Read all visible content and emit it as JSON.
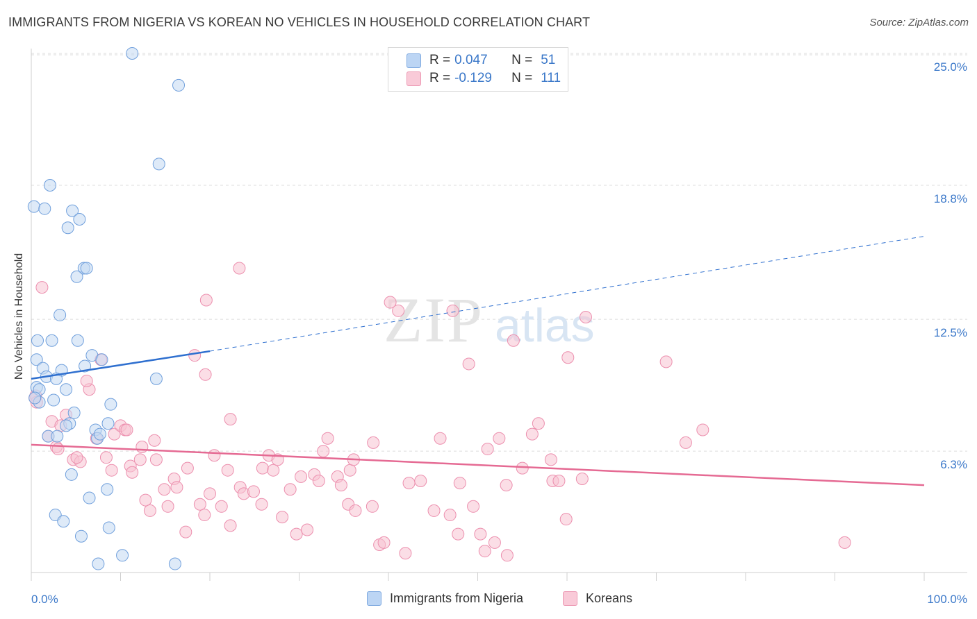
{
  "header": {
    "title": "IMMIGRANTS FROM NIGERIA VS KOREAN NO VEHICLES IN HOUSEHOLD CORRELATION CHART",
    "source": "Source: ZipAtlas.com"
  },
  "watermark": {
    "part1": "ZIP",
    "part2": "atlas"
  },
  "legend": {
    "rows": [
      {
        "r_label": "R =",
        "r_value": "0.047",
        "n_label": "N =",
        "n_value": "51",
        "color": "#a9c8f0"
      },
      {
        "r_label": "R =",
        "r_value": "-0.129",
        "n_label": "N =",
        "n_value": "111",
        "color": "#f7b8cb"
      }
    ]
  },
  "bottom_legend": {
    "items": [
      {
        "label": "Immigrants from Nigeria",
        "color": "#a9c8f0"
      },
      {
        "label": "Koreans",
        "color": "#f7b8cb"
      }
    ]
  },
  "chart_data": {
    "type": "scatter",
    "title": "IMMIGRANTS FROM NIGERIA VS KOREAN NO VEHICLES IN HOUSEHOLD CORRELATION CHART",
    "xlabel": "",
    "ylabel": "No Vehicles in Household",
    "xlim": [
      0,
      100
    ],
    "ylim": [
      0,
      26
    ],
    "x_tick_labels": [
      "0.0%",
      "100.0%"
    ],
    "y_ticks": [
      6.3,
      12.5,
      18.8,
      25.0
    ],
    "y_tick_labels": [
      "6.3%",
      "12.5%",
      "18.8%",
      "25.0%"
    ],
    "grid": true,
    "legend_position": "top-center",
    "colors": {
      "blue": "#6fa4e4",
      "blue_line": "#2e6fcf",
      "pink": "#f29ab5",
      "pink_line": "#e56a93",
      "axis_text": "#3b78c9"
    },
    "series": [
      {
        "name": "Immigrants from Nigeria",
        "color": "#a9c8f0",
        "points": [
          [
            11.3,
            25.0
          ],
          [
            16.5,
            23.5
          ],
          [
            14.3,
            19.8
          ],
          [
            2.1,
            18.8
          ],
          [
            0.3,
            17.8
          ],
          [
            1.5,
            17.7
          ],
          [
            4.6,
            17.6
          ],
          [
            5.4,
            17.2
          ],
          [
            4.1,
            16.8
          ],
          [
            5.9,
            14.9
          ],
          [
            6.2,
            14.9
          ],
          [
            5.1,
            14.5
          ],
          [
            3.2,
            12.7
          ],
          [
            0.7,
            11.5
          ],
          [
            2.3,
            11.5
          ],
          [
            5.2,
            11.5
          ],
          [
            6.8,
            10.8
          ],
          [
            7.9,
            10.6
          ],
          [
            0.6,
            10.6
          ],
          [
            1.3,
            10.2
          ],
          [
            3.4,
            10.1
          ],
          [
            6.0,
            10.3
          ],
          [
            1.7,
            9.8
          ],
          [
            2.8,
            9.7
          ],
          [
            0.6,
            9.3
          ],
          [
            0.9,
            9.2
          ],
          [
            3.9,
            9.2
          ],
          [
            14.0,
            9.7
          ],
          [
            0.9,
            8.6
          ],
          [
            2.5,
            8.7
          ],
          [
            8.9,
            8.5
          ],
          [
            0.4,
            8.8
          ],
          [
            4.8,
            8.1
          ],
          [
            4.3,
            7.6
          ],
          [
            8.6,
            7.6
          ],
          [
            3.9,
            7.5
          ],
          [
            7.2,
            7.3
          ],
          [
            1.9,
            7.0
          ],
          [
            2.9,
            7.0
          ],
          [
            7.4,
            6.9
          ],
          [
            7.7,
            7.1
          ],
          [
            4.5,
            5.2
          ],
          [
            8.5,
            4.5
          ],
          [
            6.5,
            4.1
          ],
          [
            2.7,
            3.3
          ],
          [
            3.6,
            3.0
          ],
          [
            8.7,
            2.7
          ],
          [
            5.6,
            2.3
          ],
          [
            10.2,
            1.4
          ],
          [
            7.5,
            1.0
          ],
          [
            16.1,
            1.0
          ]
        ]
      },
      {
        "name": "Koreans",
        "color": "#f7b8cb",
        "points": [
          [
            1.2,
            14.0
          ],
          [
            0.5,
            8.9
          ],
          [
            0.6,
            8.6
          ],
          [
            0.4,
            8.8
          ],
          [
            1.9,
            7.0
          ],
          [
            2.3,
            7.7
          ],
          [
            3.9,
            8.0
          ],
          [
            4.7,
            5.9
          ],
          [
            2.8,
            6.5
          ],
          [
            3.3,
            7.5
          ],
          [
            5.5,
            5.8
          ],
          [
            6.5,
            9.2
          ],
          [
            7.8,
            10.6
          ],
          [
            7.3,
            6.9
          ],
          [
            9.3,
            7.1
          ],
          [
            10.0,
            7.5
          ],
          [
            10.5,
            7.3
          ],
          [
            11.1,
            5.6
          ],
          [
            9.0,
            5.4
          ],
          [
            11.3,
            5.3
          ],
          [
            12.2,
            5.9
          ],
          [
            14.0,
            5.9
          ],
          [
            13.8,
            6.8
          ],
          [
            12.8,
            4.0
          ],
          [
            13.3,
            3.5
          ],
          [
            14.9,
            4.5
          ],
          [
            15.3,
            3.7
          ],
          [
            16.0,
            5.0
          ],
          [
            16.3,
            4.6
          ],
          [
            17.5,
            5.5
          ],
          [
            17.3,
            2.5
          ],
          [
            18.9,
            3.8
          ],
          [
            19.4,
            3.3
          ],
          [
            20.0,
            4.3
          ],
          [
            20.5,
            6.1
          ],
          [
            22.0,
            5.4
          ],
          [
            21.3,
            3.7
          ],
          [
            22.3,
            2.8
          ],
          [
            23.4,
            4.6
          ],
          [
            23.8,
            4.3
          ],
          [
            24.9,
            4.4
          ],
          [
            25.9,
            5.5
          ],
          [
            25.8,
            3.8
          ],
          [
            26.6,
            6.1
          ],
          [
            27.1,
            5.4
          ],
          [
            27.6,
            5.9
          ],
          [
            28.1,
            3.2
          ],
          [
            29.0,
            4.5
          ],
          [
            29.7,
            2.4
          ],
          [
            30.2,
            5.1
          ],
          [
            30.9,
            2.6
          ],
          [
            31.7,
            5.2
          ],
          [
            32.2,
            4.9
          ],
          [
            32.7,
            6.3
          ],
          [
            33.2,
            6.9
          ],
          [
            34.3,
            5.1
          ],
          [
            34.7,
            4.7
          ],
          [
            35.7,
            5.4
          ],
          [
            35.5,
            3.8
          ],
          [
            36.3,
            3.5
          ],
          [
            36.1,
            5.9
          ],
          [
            38.2,
            3.7
          ],
          [
            38.3,
            6.7
          ],
          [
            39.0,
            1.9
          ],
          [
            39.5,
            2.0
          ],
          [
            40.2,
            13.3
          ],
          [
            41.1,
            12.9
          ],
          [
            41.9,
            1.5
          ],
          [
            42.3,
            4.8
          ],
          [
            43.6,
            4.9
          ],
          [
            45.1,
            3.5
          ],
          [
            45.8,
            6.9
          ],
          [
            46.9,
            3.3
          ],
          [
            47.2,
            12.9
          ],
          [
            47.8,
            2.4
          ],
          [
            48.0,
            4.8
          ],
          [
            49.0,
            10.4
          ],
          [
            49.5,
            3.7
          ],
          [
            50.3,
            2.4
          ],
          [
            50.8,
            1.6
          ],
          [
            51.1,
            6.4
          ],
          [
            51.9,
            2.0
          ],
          [
            52.4,
            6.9
          ],
          [
            53.3,
            1.4
          ],
          [
            53.2,
            4.7
          ],
          [
            54.0,
            11.5
          ],
          [
            55.0,
            5.5
          ],
          [
            56.1,
            7.1
          ],
          [
            56.8,
            7.6
          ],
          [
            58.2,
            5.9
          ],
          [
            58.4,
            4.9
          ],
          [
            59.1,
            4.9
          ],
          [
            59.9,
            3.1
          ],
          [
            60.1,
            10.7
          ],
          [
            61.7,
            5.0
          ],
          [
            62.1,
            12.6
          ],
          [
            71.1,
            10.5
          ],
          [
            73.3,
            6.7
          ],
          [
            75.2,
            7.3
          ],
          [
            91.1,
            2.0
          ],
          [
            12.4,
            6.5
          ],
          [
            6.2,
            9.6
          ],
          [
            8.4,
            6.0
          ],
          [
            3.0,
            6.4
          ],
          [
            18.3,
            10.8
          ],
          [
            19.5,
            9.9
          ],
          [
            23.3,
            14.9
          ],
          [
            19.6,
            13.4
          ],
          [
            22.3,
            7.8
          ],
          [
            10.7,
            7.3
          ],
          [
            5.1,
            6.0
          ]
        ]
      }
    ],
    "trend_lines": [
      {
        "series": "Immigrants from Nigeria",
        "x": [
          0,
          20
        ],
        "y": [
          9.7,
          11.0
        ],
        "extended_to": [
          100,
          16.4
        ]
      },
      {
        "series": "Koreans",
        "x": [
          0,
          100
        ],
        "y": [
          6.6,
          4.7
        ]
      }
    ]
  }
}
